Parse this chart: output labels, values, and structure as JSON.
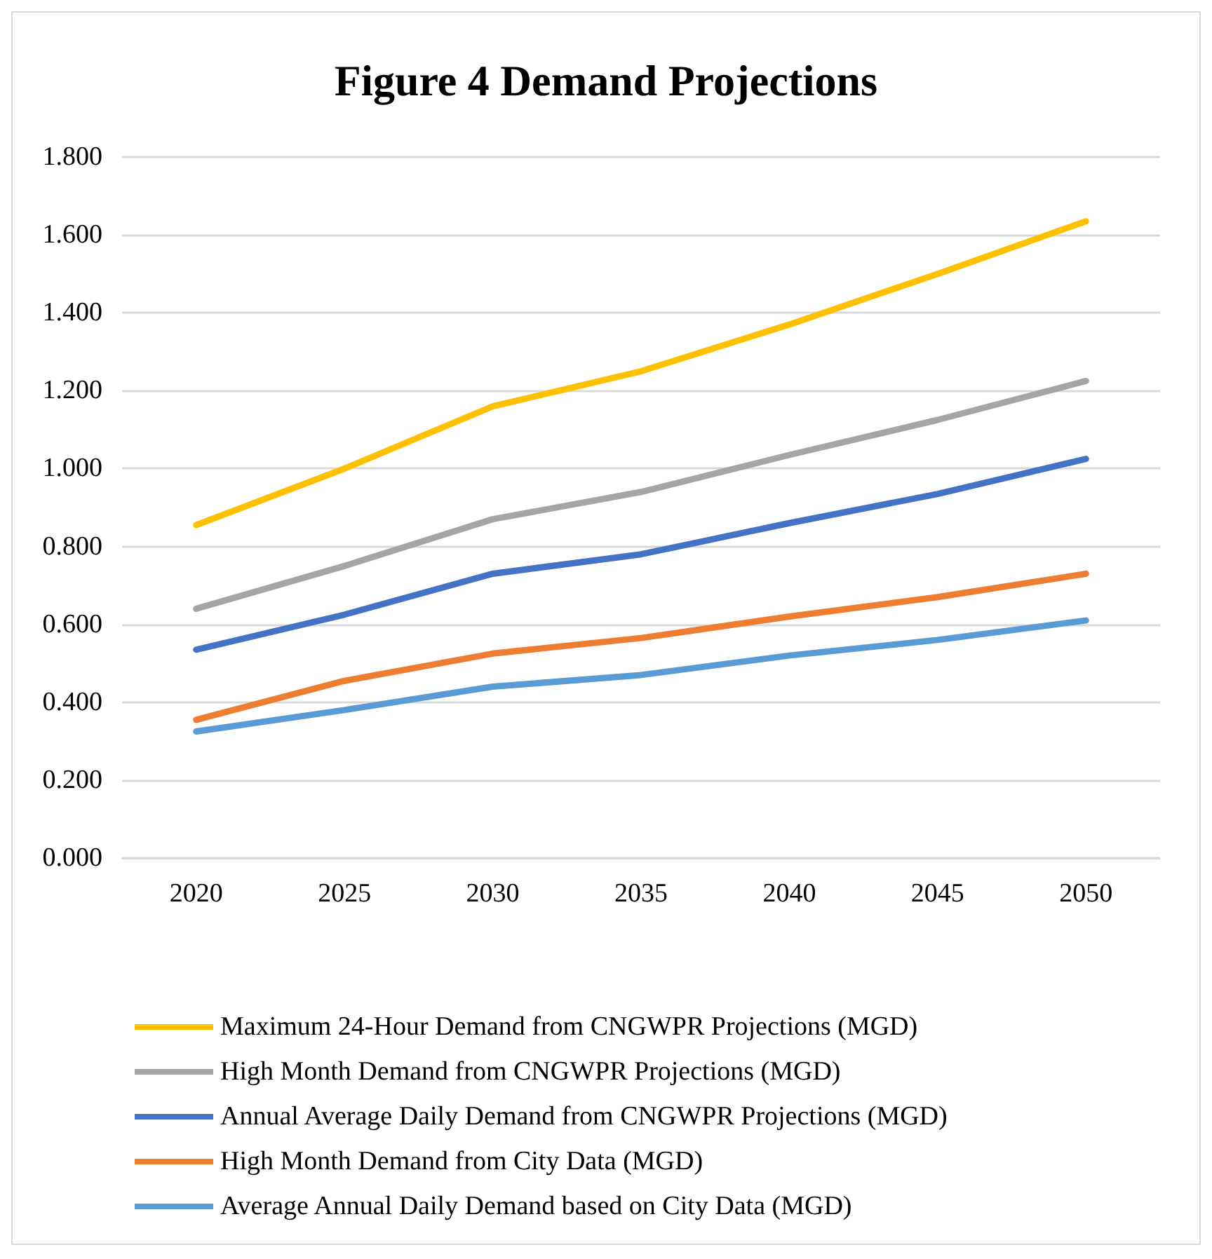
{
  "chart_data": {
    "type": "line",
    "title": "Figure 4 Demand Projections",
    "categories": [
      "2020",
      "2025",
      "2030",
      "2035",
      "2040",
      "2045",
      "2050"
    ],
    "series": [
      {
        "name": "Maximum 24-Hour Demand from CNGWPR Projections (MGD)",
        "color": "#ffc000",
        "values": [
          0.855,
          1.0,
          1.16,
          1.25,
          1.37,
          1.5,
          1.635
        ]
      },
      {
        "name": "High Month Demand from CNGWPR Projections (MGD)",
        "color": "#a5a5a5",
        "values": [
          0.64,
          0.75,
          0.87,
          0.94,
          1.035,
          1.125,
          1.225
        ]
      },
      {
        "name": "Annual Average Daily Demand from CNGWPR Projections (MGD)",
        "color": "#4472c4",
        "values": [
          0.535,
          0.625,
          0.73,
          0.78,
          0.86,
          0.935,
          1.025
        ]
      },
      {
        "name": "High Month Demand from City Data (MGD)",
        "color": "#ed7d31",
        "values": [
          0.355,
          0.455,
          0.525,
          0.565,
          0.62,
          0.67,
          0.73
        ]
      },
      {
        "name": "Average Annual Daily Demand based on City Data (MGD)",
        "color": "#5b9bd5",
        "values": [
          0.325,
          0.38,
          0.44,
          0.47,
          0.52,
          0.56,
          0.61
        ]
      }
    ],
    "ylim": [
      0,
      1.8
    ],
    "yticks": [
      {
        "value": 0,
        "label": "0.000"
      },
      {
        "value": 0.2,
        "label": "0.200"
      },
      {
        "value": 0.4,
        "label": "0.400"
      },
      {
        "value": 0.6,
        "label": "0.600"
      },
      {
        "value": 0.8,
        "label": "0.800"
      },
      {
        "value": 1.0,
        "label": "1.000"
      },
      {
        "value": 1.2,
        "label": "1.200"
      },
      {
        "value": 1.4,
        "label": "1.400"
      },
      {
        "value": 1.6,
        "label": "1.600"
      },
      {
        "value": 1.8,
        "label": "1.800"
      }
    ],
    "grid": "y",
    "legend": "bottom",
    "marker": "none",
    "line_style": "solid"
  }
}
